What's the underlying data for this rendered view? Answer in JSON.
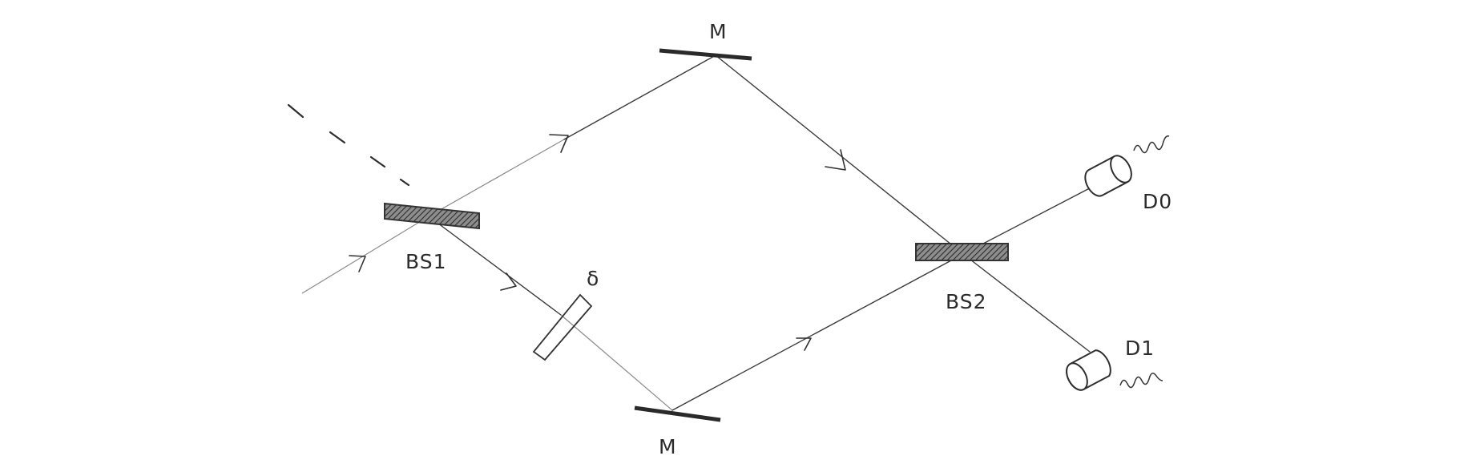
{
  "diagram": {
    "labels": {
      "mirror_top": "M",
      "mirror_bottom": "M",
      "beam_splitter_1": "BS1",
      "beam_splitter_2": "BS2",
      "phase_shifter": "δ",
      "detector_0": "D0",
      "detector_1": "D1"
    }
  }
}
